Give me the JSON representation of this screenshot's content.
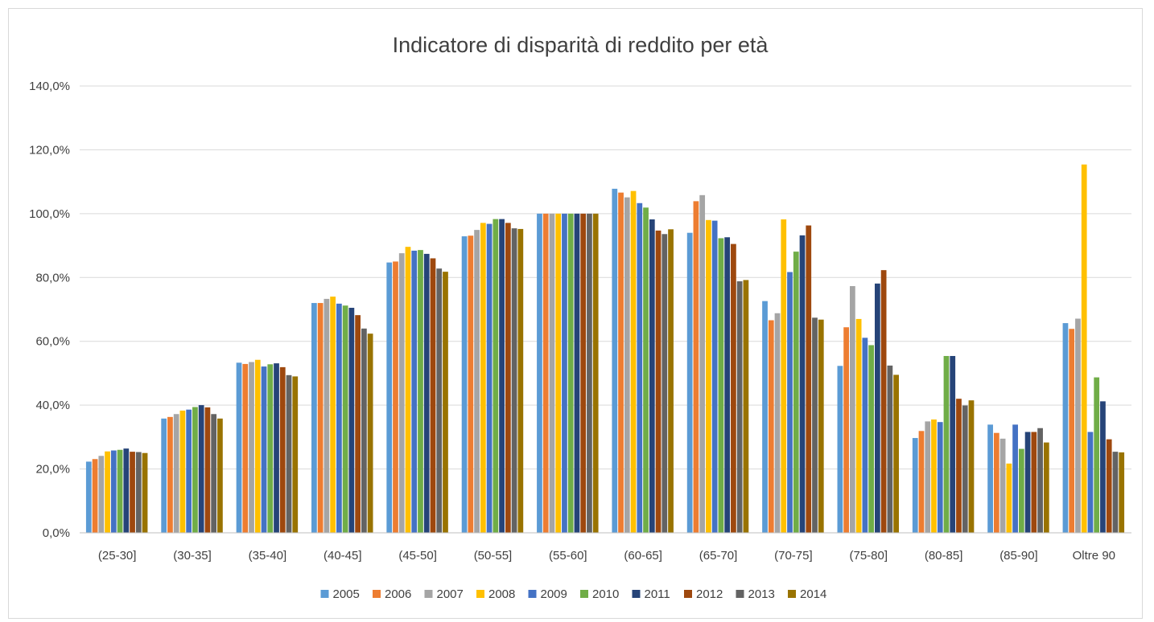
{
  "chart_data": {
    "type": "bar",
    "title": "Indicatore di disparità di reddito per età",
    "xlabel": "",
    "ylabel": "",
    "ylim": [
      0,
      140
    ],
    "y_ticks": [
      "0,0%",
      "20,0%",
      "40,0%",
      "60,0%",
      "80,0%",
      "100,0%",
      "120,0%",
      "140,0%"
    ],
    "y_tick_values": [
      0,
      20,
      40,
      60,
      80,
      100,
      120,
      140
    ],
    "grid": true,
    "legend_position": "bottom",
    "categories": [
      "(25-30]",
      "(30-35]",
      "(35-40]",
      "(40-45]",
      "(45-50]",
      "(50-55]",
      "(55-60]",
      "(60-65]",
      "(65-70]",
      "(70-75]",
      "(75-80]",
      "(80-85]",
      "(85-90]",
      "Oltre 90"
    ],
    "series": [
      {
        "name": "2005",
        "color": "#5B9BD5",
        "values": [
          22.3,
          35.8,
          53.3,
          72.0,
          84.7,
          92.9,
          100.0,
          107.8,
          94.0,
          72.6,
          52.3,
          29.7,
          33.9,
          65.7
        ]
      },
      {
        "name": "2006",
        "color": "#ED7D31",
        "values": [
          23.1,
          36.3,
          52.9,
          72.0,
          85.0,
          93.1,
          100.0,
          106.6,
          103.9,
          66.6,
          64.4,
          31.9,
          31.3,
          63.9
        ]
      },
      {
        "name": "2007",
        "color": "#A5A5A5",
        "values": [
          24.1,
          37.2,
          53.5,
          73.3,
          87.6,
          94.9,
          100.0,
          105.1,
          105.8,
          68.8,
          77.3,
          34.9,
          29.5,
          67.1
        ]
      },
      {
        "name": "2008",
        "color": "#FFC000",
        "values": [
          25.5,
          38.3,
          54.2,
          74.0,
          89.6,
          97.1,
          100.0,
          107.1,
          98.0,
          98.2,
          67.0,
          35.5,
          21.7,
          115.4
        ]
      },
      {
        "name": "2009",
        "color": "#4472C4",
        "values": [
          25.8,
          38.6,
          52.1,
          71.8,
          88.4,
          96.8,
          100.0,
          103.3,
          97.8,
          81.7,
          61.1,
          34.7,
          33.9,
          31.6
        ]
      },
      {
        "name": "2010",
        "color": "#70AD47",
        "values": [
          26.0,
          39.4,
          52.8,
          71.2,
          88.6,
          98.3,
          100.0,
          101.9,
          92.3,
          88.1,
          58.8,
          55.4,
          26.3,
          48.7
        ]
      },
      {
        "name": "2011",
        "color": "#264478",
        "values": [
          26.4,
          40.0,
          53.1,
          70.5,
          87.4,
          98.3,
          100.0,
          98.2,
          92.6,
          93.2,
          78.1,
          55.4,
          31.6,
          41.2
        ]
      },
      {
        "name": "2012",
        "color": "#9E480E",
        "values": [
          25.4,
          39.3,
          51.9,
          68.2,
          86.0,
          97.1,
          100.0,
          94.7,
          90.5,
          96.3,
          82.3,
          42.0,
          31.6,
          29.3
        ]
      },
      {
        "name": "2013",
        "color": "#636363",
        "values": [
          25.3,
          37.2,
          49.4,
          64.0,
          82.8,
          95.4,
          100.0,
          93.6,
          78.8,
          67.4,
          52.4,
          39.9,
          32.8,
          25.4
        ]
      },
      {
        "name": "2014",
        "color": "#997300",
        "values": [
          25.0,
          35.8,
          49.0,
          62.4,
          81.8,
          95.2,
          100.0,
          95.1,
          79.2,
          66.8,
          49.5,
          41.5,
          28.3,
          25.2
        ]
      }
    ]
  }
}
